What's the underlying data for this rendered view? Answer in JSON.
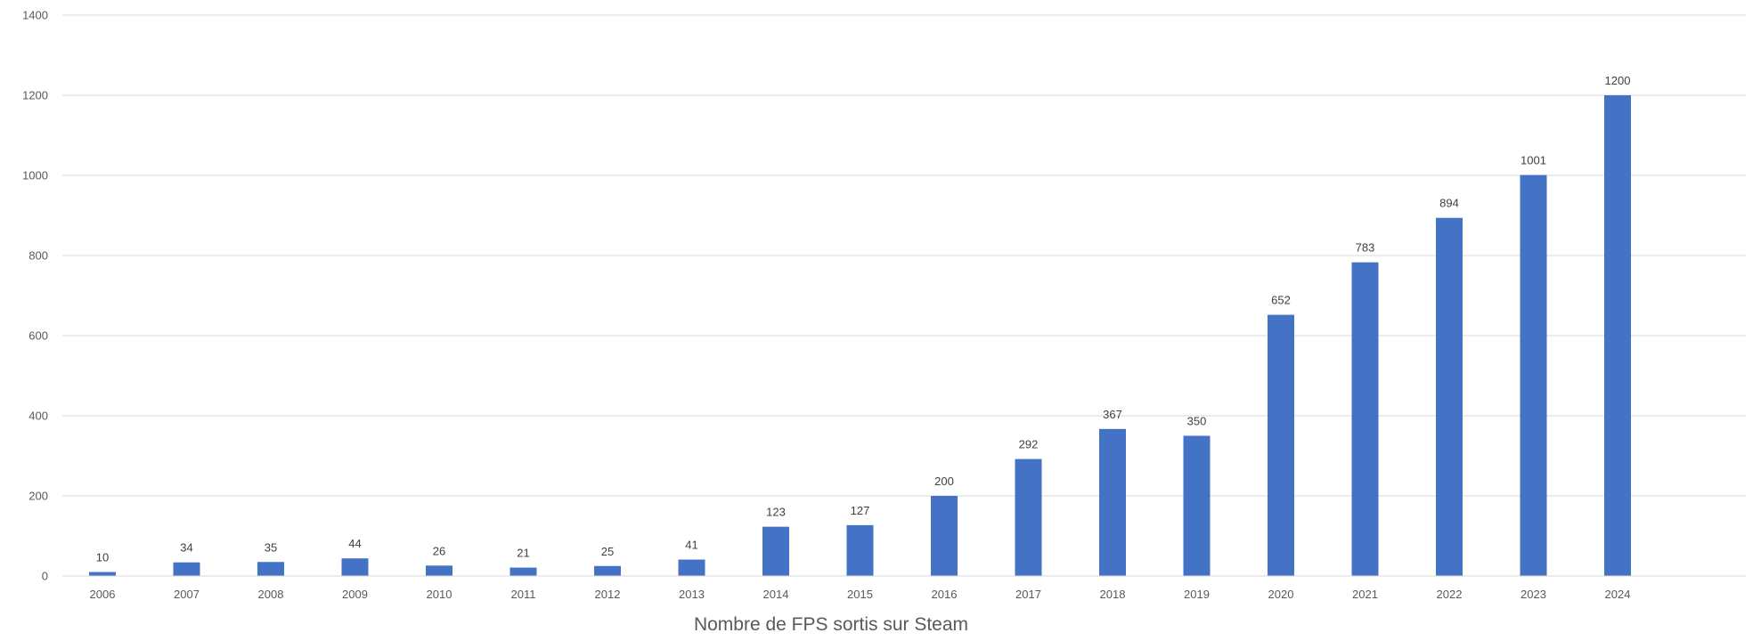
{
  "chart_data": {
    "type": "bar",
    "title": "",
    "xlabel": "Nombre de FPS sortis sur Steam",
    "ylabel": "",
    "categories": [
      "2006",
      "2007",
      "2008",
      "2009",
      "2010",
      "2011",
      "2012",
      "2013",
      "2014",
      "2015",
      "2016",
      "2017",
      "2018",
      "2019",
      "2020",
      "2021",
      "2022",
      "2023",
      "2024"
    ],
    "values": [
      10,
      34,
      35,
      44,
      26,
      21,
      25,
      41,
      123,
      127,
      200,
      292,
      367,
      350,
      652,
      783,
      894,
      1001,
      1200
    ],
    "ylim": [
      0,
      1400
    ],
    "yticks": [
      0,
      200,
      400,
      600,
      800,
      1000,
      1200,
      1400
    ],
    "grid": "horizontal",
    "legend": "none",
    "data_labels": true,
    "colors": {
      "bar": "#4472C4",
      "grid": "#D9D9D9",
      "tick_text": "#595959",
      "label_text": "#404040"
    }
  }
}
